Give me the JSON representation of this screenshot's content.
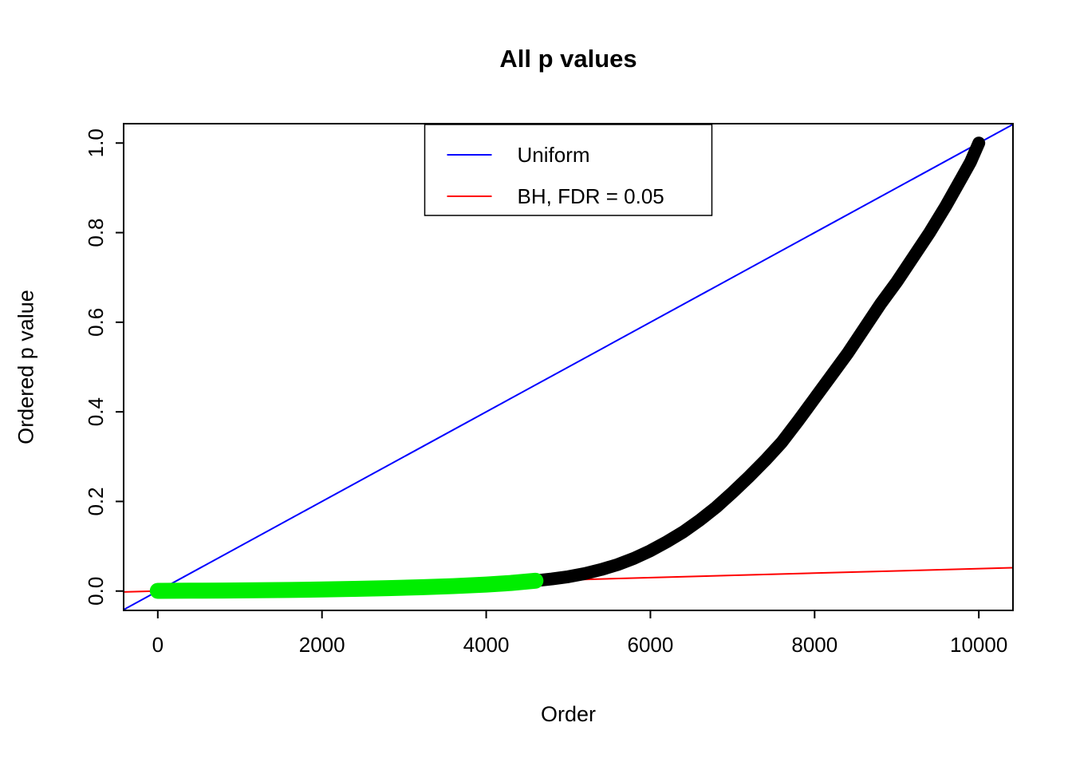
{
  "title": "All p values",
  "axes": {
    "xlabel": "Order",
    "ylabel": "Ordered p value",
    "x_ticks": [
      "0",
      "2000",
      "4000",
      "6000",
      "8000",
      "10000"
    ],
    "y_ticks": [
      "0.0",
      "0.2",
      "0.4",
      "0.6",
      "0.8",
      "1.0"
    ]
  },
  "legend": {
    "items": [
      {
        "label": "Uniform",
        "color": "#0000FF"
      },
      {
        "label": "BH, FDR = 0.05",
        "color": "#FF0000"
      }
    ]
  },
  "colors": {
    "frame": "#000000",
    "background": "#FFFFFF",
    "curve": "#000000",
    "significant": "#00EE00",
    "uniform_line": "#0000FF",
    "bh_line": "#FF0000"
  },
  "chart_data": {
    "type": "scatter",
    "title": "All p values",
    "xlabel": "Order",
    "ylabel": "Ordered p value",
    "xlim": [
      -416,
      10416
    ],
    "ylim": [
      -0.0432,
      1.0432
    ],
    "x_ticks": [
      0,
      2000,
      4000,
      6000,
      8000,
      10000
    ],
    "y_ticks": [
      0.0,
      0.2,
      0.4,
      0.6,
      0.8,
      1.0
    ],
    "grid": false,
    "legend_position": "top-center",
    "n_tests": 10000,
    "fdr": 0.05,
    "reference_lines": [
      {
        "name": "Uniform",
        "color": "#0000FF",
        "intercept": 0,
        "slope_per_n": 1.0
      },
      {
        "name": "BH, FDR = 0.05",
        "color": "#FF0000",
        "intercept": 0,
        "slope_per_n": 0.05
      }
    ],
    "ordered_p": {
      "point_color": "#000000",
      "significant_color": "#00EE00",
      "significant_max_x": 4600,
      "x": [
        0,
        400,
        800,
        1200,
        1600,
        2000,
        2400,
        2800,
        3200,
        3600,
        4000,
        4300,
        4600,
        4800,
        5000,
        5200,
        5400,
        5600,
        5800,
        6000,
        6200,
        6400,
        6600,
        6800,
        7000,
        7200,
        7400,
        7600,
        7800,
        8000,
        8200,
        8400,
        8600,
        8800,
        9000,
        9200,
        9400,
        9600,
        9800,
        9900,
        10000
      ],
      "y": [
        0.0005,
        0.0008,
        0.0012,
        0.0018,
        0.0025,
        0.0035,
        0.0048,
        0.0065,
        0.0085,
        0.011,
        0.0145,
        0.018,
        0.023,
        0.027,
        0.032,
        0.039,
        0.048,
        0.059,
        0.073,
        0.09,
        0.11,
        0.132,
        0.158,
        0.187,
        0.22,
        0.255,
        0.292,
        0.332,
        0.38,
        0.43,
        0.48,
        0.53,
        0.585,
        0.64,
        0.69,
        0.745,
        0.8,
        0.86,
        0.925,
        0.958,
        1.0
      ]
    }
  }
}
